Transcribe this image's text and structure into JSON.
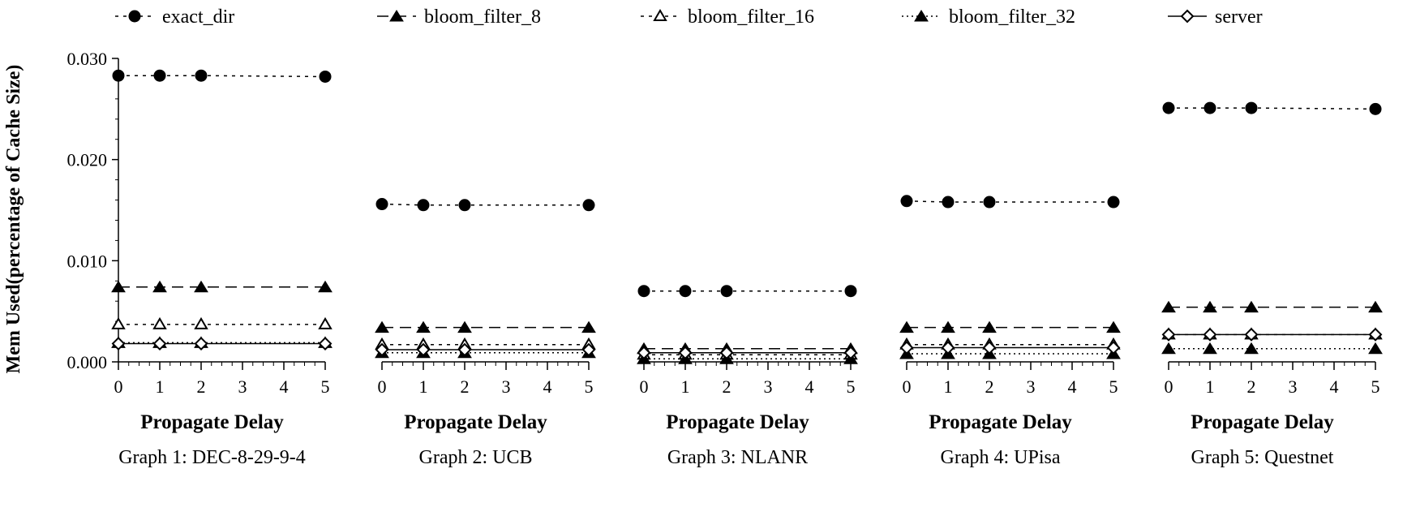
{
  "chart_data": {
    "type": "line",
    "legend": [
      {
        "key": "exact_dir",
        "label": "exact_dir",
        "marker": "circle-filled",
        "dash": "dashdot"
      },
      {
        "key": "bloom_filter_8",
        "label": "bloom_filter_8",
        "marker": "triangle-filled",
        "dash": "longdash"
      },
      {
        "key": "bloom_filter_16",
        "label": "bloom_filter_16",
        "marker": "triangle-open",
        "dash": "dashdot"
      },
      {
        "key": "bloom_filter_32",
        "label": "bloom_filter_32",
        "marker": "triangle-filled",
        "dash": "solid-dot"
      },
      {
        "key": "server",
        "label": "server",
        "marker": "diamond-open",
        "dash": "solid"
      }
    ],
    "ylabel": "Mem Used(percentage of Cache Size)",
    "yticks": [
      "0.000",
      "0.010",
      "0.020",
      "0.030"
    ],
    "ylim": [
      0,
      0.03
    ],
    "xlim": [
      0,
      5
    ],
    "xticks": [
      "0",
      "1",
      "2",
      "3",
      "4",
      "5"
    ],
    "x": [
      0,
      1,
      2,
      5
    ],
    "panels": [
      {
        "xlabel": "Propagate Delay",
        "caption": "Graph 1: DEC-8-29-9-4",
        "series": [
          {
            "name": "exact_dir",
            "values": [
              0.0283,
              0.0283,
              0.0283,
              0.0282
            ]
          },
          {
            "name": "bloom_filter_8",
            "values": [
              0.0074,
              0.0074,
              0.0074,
              0.0074
            ]
          },
          {
            "name": "bloom_filter_16",
            "values": [
              0.0037,
              0.0037,
              0.0037,
              0.0037
            ]
          },
          {
            "name": "bloom_filter_32",
            "values": [
              0.0019,
              0.0019,
              0.0019,
              0.0019
            ]
          },
          {
            "name": "server",
            "values": [
              0.0018,
              0.0018,
              0.0018,
              0.0018
            ]
          }
        ]
      },
      {
        "xlabel": "Propagate Delay",
        "caption": "Graph 2: UCB",
        "series": [
          {
            "name": "exact_dir",
            "values": [
              0.0156,
              0.0155,
              0.0155,
              0.0155
            ]
          },
          {
            "name": "bloom_filter_8",
            "values": [
              0.0034,
              0.0034,
              0.0034,
              0.0034
            ]
          },
          {
            "name": "bloom_filter_16",
            "values": [
              0.0017,
              0.0017,
              0.0017,
              0.0017
            ]
          },
          {
            "name": "bloom_filter_32",
            "values": [
              0.0009,
              0.0009,
              0.0009,
              0.0009
            ]
          },
          {
            "name": "server",
            "values": [
              0.0012,
              0.0012,
              0.0012,
              0.0012
            ]
          }
        ]
      },
      {
        "xlabel": "Propagate Delay",
        "caption": "Graph 3: NLANR",
        "series": [
          {
            "name": "exact_dir",
            "values": [
              0.007,
              0.007,
              0.007,
              0.007
            ]
          },
          {
            "name": "bloom_filter_8",
            "values": [
              0.0013,
              0.0013,
              0.0013,
              0.0013
            ]
          },
          {
            "name": "bloom_filter_16",
            "values": [
              0.0007,
              0.0007,
              0.0007,
              0.0007
            ]
          },
          {
            "name": "bloom_filter_32",
            "values": [
              0.0003,
              0.0003,
              0.0003,
              0.0003
            ]
          },
          {
            "name": "server",
            "values": [
              0.0009,
              0.0009,
              0.0009,
              0.0009
            ]
          }
        ]
      },
      {
        "xlabel": "Propagate Delay",
        "caption": "Graph 4: UPisa",
        "series": [
          {
            "name": "exact_dir",
            "values": [
              0.0159,
              0.0158,
              0.0158,
              0.0158
            ]
          },
          {
            "name": "bloom_filter_8",
            "values": [
              0.0034,
              0.0034,
              0.0034,
              0.0034
            ]
          },
          {
            "name": "bloom_filter_16",
            "values": [
              0.0017,
              0.0017,
              0.0017,
              0.0017
            ]
          },
          {
            "name": "bloom_filter_32",
            "values": [
              0.0008,
              0.0008,
              0.0008,
              0.0008
            ]
          },
          {
            "name": "server",
            "values": [
              0.0014,
              0.0014,
              0.0014,
              0.0014
            ]
          }
        ]
      },
      {
        "xlabel": "Propagate Delay",
        "caption": "Graph 5: Questnet",
        "series": [
          {
            "name": "exact_dir",
            "values": [
              0.0251,
              0.0251,
              0.0251,
              0.025
            ]
          },
          {
            "name": "bloom_filter_8",
            "values": [
              0.0054,
              0.0054,
              0.0054,
              0.0054
            ]
          },
          {
            "name": "bloom_filter_16",
            "values": [
              0.0027,
              0.0027,
              0.0027,
              0.0027
            ]
          },
          {
            "name": "bloom_filter_32",
            "values": [
              0.0013,
              0.0013,
              0.0013,
              0.0013
            ]
          },
          {
            "name": "server",
            "values": [
              0.0027,
              0.0027,
              0.0027,
              0.0027
            ]
          }
        ]
      }
    ]
  }
}
